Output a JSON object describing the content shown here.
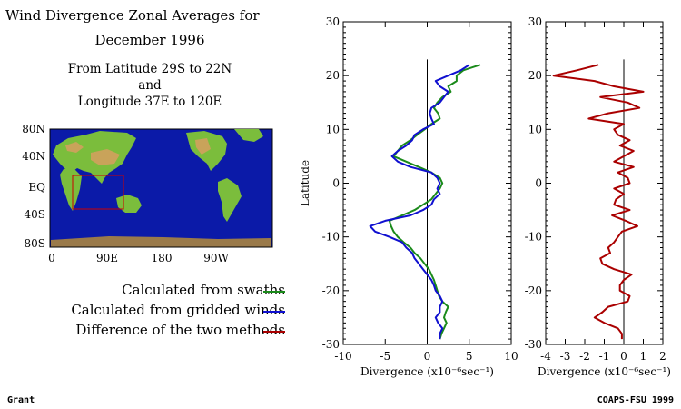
{
  "header": {
    "title_line1": "Wind Divergence Zonal Averages for",
    "title_line2": "December 1996",
    "region_line1": "From Latitude 29S to 22N",
    "region_line2": "and",
    "region_line3": "Longitude 37E to 120E"
  },
  "map": {
    "lat_labels": [
      "80N",
      "40N",
      "EQ",
      "40S",
      "80S"
    ],
    "lon_labels": [
      "0",
      "90E",
      "180",
      "90W"
    ]
  },
  "legend": [
    {
      "label": "Calculated from swaths",
      "color": "#1a8a1a"
    },
    {
      "label": "Calculated from gridded winds",
      "color": "#1010d0"
    },
    {
      "label": "Difference of the two methods",
      "color": "#aa0000"
    }
  ],
  "footer": {
    "left": "Grant",
    "right": "COAPS-FSU 1999"
  },
  "chart_data": [
    {
      "type": "line",
      "orientation": "vertical-profile",
      "ylabel": "Latitude",
      "xlabel": "Divergence (x10⁻⁶sec⁻¹)",
      "xlim": [
        -10,
        10
      ],
      "ylim": [
        -30,
        30
      ],
      "xticks": [
        -10,
        -5,
        0,
        5,
        10
      ],
      "yticks": [
        30,
        20,
        10,
        0,
        -10,
        -20,
        -30
      ],
      "series": [
        {
          "name": "Calculated from swaths",
          "color": "#1a8a1a",
          "points": [
            [
              6.3,
              22
            ],
            [
              4.3,
              21
            ],
            [
              3.5,
              20
            ],
            [
              3.5,
              19
            ],
            [
              2.5,
              18
            ],
            [
              2.8,
              17
            ],
            [
              1.8,
              16
            ],
            [
              1.2,
              15
            ],
            [
              0.8,
              14
            ],
            [
              1.3,
              13
            ],
            [
              1.5,
              12
            ],
            [
              0.5,
              11
            ],
            [
              -0.3,
              10
            ],
            [
              -1.2,
              9
            ],
            [
              -2.0,
              8
            ],
            [
              -3.0,
              7
            ],
            [
              -3.5,
              6
            ],
            [
              -4.0,
              5
            ],
            [
              -2.5,
              4
            ],
            [
              -1.0,
              3
            ],
            [
              0.5,
              2
            ],
            [
              1.5,
              1
            ],
            [
              1.8,
              0
            ],
            [
              1.5,
              -1
            ],
            [
              1.0,
              -2
            ],
            [
              0.5,
              -3
            ],
            [
              -0.5,
              -4
            ],
            [
              -1.5,
              -5
            ],
            [
              -3.0,
              -6
            ],
            [
              -4.5,
              -7
            ],
            [
              -4.3,
              -8
            ],
            [
              -4.0,
              -9
            ],
            [
              -3.5,
              -10
            ],
            [
              -2.8,
              -11
            ],
            [
              -2.0,
              -12
            ],
            [
              -1.5,
              -13
            ],
            [
              -0.8,
              -14
            ],
            [
              -0.3,
              -15
            ],
            [
              0.2,
              -16
            ],
            [
              0.5,
              -17
            ],
            [
              0.8,
              -18
            ],
            [
              1.0,
              -19
            ],
            [
              1.2,
              -20
            ],
            [
              1.4,
              -21
            ],
            [
              1.8,
              -22
            ],
            [
              2.5,
              -23
            ],
            [
              2.2,
              -24
            ],
            [
              2.0,
              -25
            ],
            [
              2.3,
              -26
            ],
            [
              2.0,
              -27
            ],
            [
              1.7,
              -28
            ],
            [
              1.5,
              -29
            ]
          ]
        },
        {
          "name": "Calculated from gridded winds",
          "color": "#1010d0",
          "points": [
            [
              5.0,
              22
            ],
            [
              4.0,
              21
            ],
            [
              2.5,
              20
            ],
            [
              1.0,
              19
            ],
            [
              1.5,
              18
            ],
            [
              2.5,
              17
            ],
            [
              2.0,
              16
            ],
            [
              1.5,
              15
            ],
            [
              0.5,
              14
            ],
            [
              0.3,
              13
            ],
            [
              0.5,
              12
            ],
            [
              0.8,
              11
            ],
            [
              -0.5,
              10
            ],
            [
              -1.5,
              9
            ],
            [
              -1.8,
              8
            ],
            [
              -2.5,
              7
            ],
            [
              -3.5,
              6
            ],
            [
              -4.2,
              5
            ],
            [
              -3.5,
              4
            ],
            [
              -2.0,
              3
            ],
            [
              0.5,
              2
            ],
            [
              1.2,
              1
            ],
            [
              1.5,
              0
            ],
            [
              1.2,
              -1
            ],
            [
              1.5,
              -2
            ],
            [
              0.8,
              -3
            ],
            [
              0.5,
              -4
            ],
            [
              -0.5,
              -5
            ],
            [
              -2.0,
              -6
            ],
            [
              -5.0,
              -7
            ],
            [
              -6.8,
              -8
            ],
            [
              -6.2,
              -9
            ],
            [
              -4.5,
              -10
            ],
            [
              -3.0,
              -11
            ],
            [
              -2.5,
              -12
            ],
            [
              -1.8,
              -13
            ],
            [
              -1.5,
              -14
            ],
            [
              -1.0,
              -15
            ],
            [
              -0.5,
              -16
            ],
            [
              0.0,
              -17
            ],
            [
              0.5,
              -18
            ],
            [
              0.8,
              -19
            ],
            [
              1.0,
              -20
            ],
            [
              1.5,
              -21
            ],
            [
              1.8,
              -22
            ],
            [
              1.5,
              -23
            ],
            [
              1.5,
              -24
            ],
            [
              1.0,
              -25
            ],
            [
              1.3,
              -26
            ],
            [
              1.8,
              -27
            ],
            [
              1.5,
              -28
            ],
            [
              1.5,
              -29
            ]
          ]
        }
      ]
    },
    {
      "type": "line",
      "orientation": "vertical-profile",
      "xlabel": "Divergence (x10⁻⁶sec⁻¹)",
      "xlim": [
        -4,
        2
      ],
      "ylim": [
        -30,
        30
      ],
      "xticks": [
        -4,
        -3,
        -2,
        -1,
        0,
        1,
        2
      ],
      "yticks": [
        30,
        20,
        10,
        0,
        -10,
        -20,
        -30
      ],
      "series": [
        {
          "name": "Difference of the two methods",
          "color": "#aa0000",
          "points": [
            [
              -1.3,
              22
            ],
            [
              -2.4,
              21
            ],
            [
              -3.6,
              20
            ],
            [
              -1.5,
              19
            ],
            [
              -0.5,
              18
            ],
            [
              1.0,
              17
            ],
            [
              -1.2,
              16
            ],
            [
              0.2,
              15
            ],
            [
              0.8,
              14
            ],
            [
              -0.8,
              13
            ],
            [
              -1.8,
              12
            ],
            [
              0.0,
              11
            ],
            [
              -0.5,
              10
            ],
            [
              -0.3,
              9
            ],
            [
              0.3,
              8
            ],
            [
              -0.2,
              7
            ],
            [
              0.5,
              6
            ],
            [
              0.0,
              5
            ],
            [
              -0.5,
              4
            ],
            [
              0.5,
              3
            ],
            [
              -0.3,
              2
            ],
            [
              0.2,
              1
            ],
            [
              0.3,
              0
            ],
            [
              -0.5,
              -1
            ],
            [
              0.0,
              -2
            ],
            [
              -0.4,
              -3
            ],
            [
              -0.5,
              -4
            ],
            [
              0.3,
              -5
            ],
            [
              -0.6,
              -6
            ],
            [
              0.1,
              -7
            ],
            [
              0.7,
              -8
            ],
            [
              -0.1,
              -9
            ],
            [
              -0.3,
              -10
            ],
            [
              -0.5,
              -11
            ],
            [
              -0.8,
              -12
            ],
            [
              -0.7,
              -13
            ],
            [
              -1.2,
              -14
            ],
            [
              -1.1,
              -15
            ],
            [
              -0.5,
              -16
            ],
            [
              0.4,
              -17
            ],
            [
              0.0,
              -18
            ],
            [
              -0.2,
              -19
            ],
            [
              -0.2,
              -20
            ],
            [
              0.3,
              -21
            ],
            [
              0.2,
              -22
            ],
            [
              -0.8,
              -23
            ],
            [
              -1.1,
              -24
            ],
            [
              -1.5,
              -25
            ],
            [
              -1.0,
              -26
            ],
            [
              -0.3,
              -27
            ],
            [
              -0.1,
              -28
            ],
            [
              -0.1,
              -29
            ]
          ]
        }
      ]
    }
  ]
}
